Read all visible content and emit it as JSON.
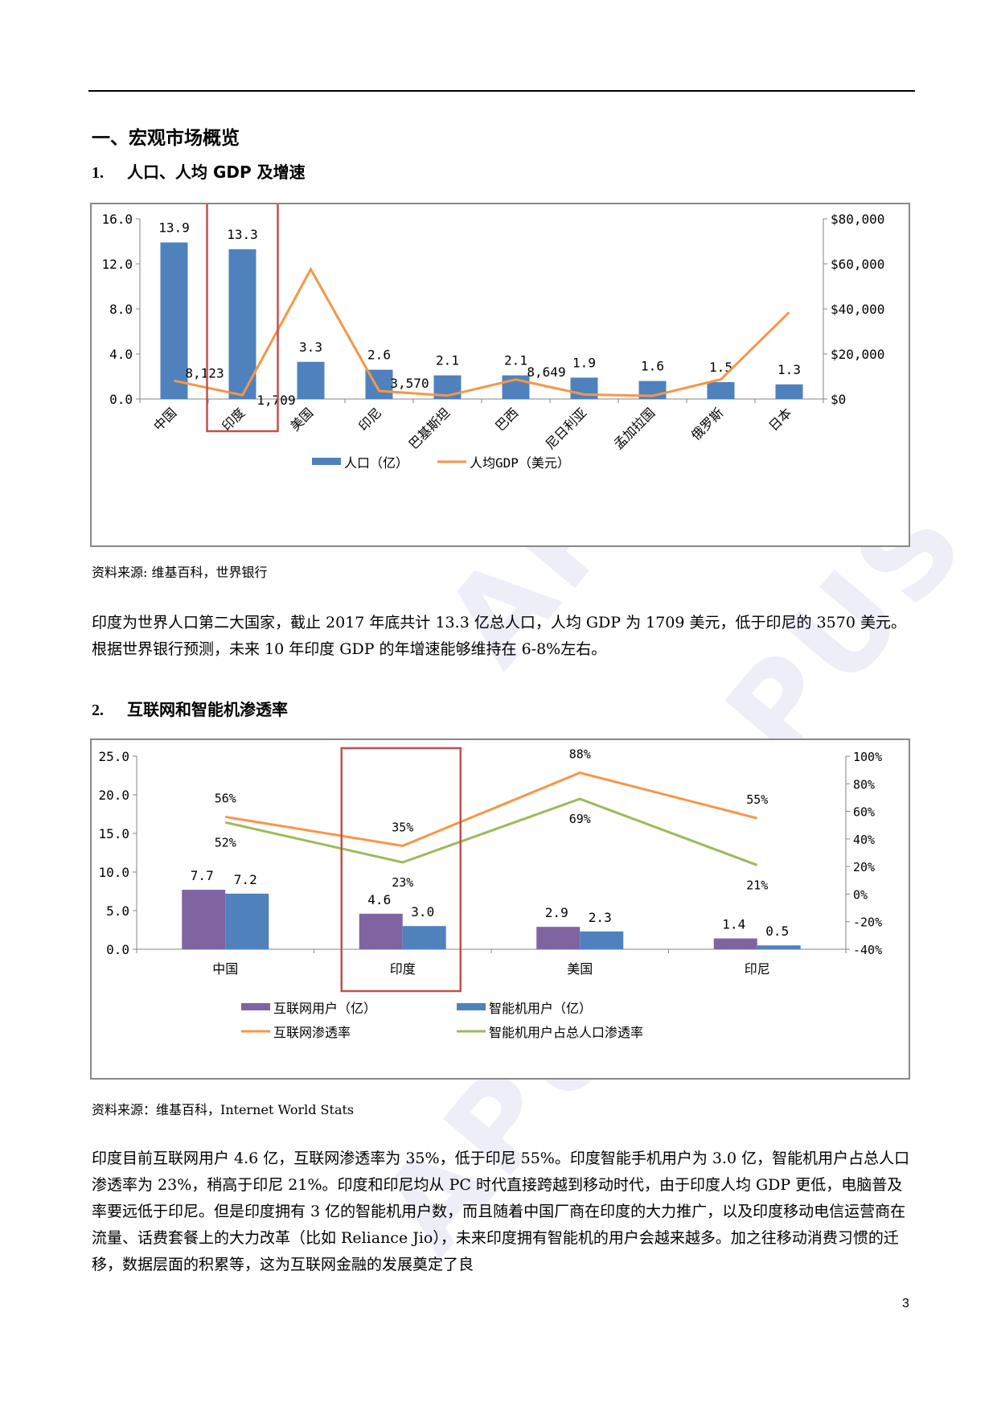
{
  "watermark_text": "APUS",
  "section_title": "一、宏观市场概览",
  "sub1": {
    "num": "1.",
    "title": "人口、人均 GDP 及增速"
  },
  "chart1_source": "资料来源: 维基百科，世界银行",
  "para1": "印度为世界人口第二大国家，截止 2017 年底共计 13.3 亿总人口，人均 GDP 为 1709 美元，低于印尼的 3570 美元。根据世界银行预测，未来 10 年印度 GDP 的年增速能够维持在 6-8%左右。",
  "sub2": {
    "num": "2.",
    "title": "互联网和智能机渗透率"
  },
  "chart2_source": "资料来源：维基百科，Internet World Stats",
  "para2": "印度目前互联网用户 4.6 亿，互联网渗透率为 35%，低于印尼 55%。印度智能手机用户为 3.0 亿，智能机用户占总人口渗透率为 23%，稍高于印尼 21%。印度和印尼均从 PC 时代直接跨越到移动时代，由于印度人均 GDP 更低，电脑普及率要远低于印尼。但是印度拥有 3 亿的智能机用户数，而且随着中国厂商在印度的大力推广，以及印度移动电信运营商在流量、话费套餐上的大力改革（比如 Reliance Jio），未来印度拥有智能机的用户会越来越多。加之往移动消费习惯的迁移，数据层面的积累等，这为互联网金融的发展奠定了良",
  "page_number": "3",
  "chart_data": [
    {
      "type": "bar",
      "categories": [
        "中国",
        "印度",
        "美国",
        "印尼",
        "巴基斯坦",
        "巴西",
        "尼日利亚",
        "孟加拉国",
        "俄罗斯",
        "日本"
      ],
      "series": [
        {
          "name": "人口（亿）",
          "kind": "bar",
          "axis": "left",
          "color": "#4f81bd",
          "values": [
            13.9,
            13.3,
            3.3,
            2.6,
            2.1,
            2.1,
            1.9,
            1.6,
            1.5,
            1.3
          ],
          "labels": [
            "13.9",
            "13.3",
            "3.3",
            "2.6",
            "2.1",
            "2.1",
            "1.9",
            "1.6",
            "1.5",
            "1.3"
          ]
        },
        {
          "name": "人均GDP（美元）",
          "kind": "line",
          "axis": "right",
          "color": "#f79646",
          "values": [
            8123,
            1709,
            57600,
            3570,
            1500,
            8649,
            2000,
            1400,
            8700,
            38500
          ],
          "point_labels": [
            {
              "i": 0,
              "text": "8,123"
            },
            {
              "i": 1,
              "text": "1,709"
            },
            {
              "i": 3,
              "text": "3,570"
            },
            {
              "i": 5,
              "text": "8,649"
            }
          ]
        }
      ],
      "yticks_left": [
        "0.0",
        "4.0",
        "8.0",
        "12.0",
        "16.0"
      ],
      "ylim_left": [
        0,
        16
      ],
      "yticks_right": [
        "$0",
        "$20,000",
        "$40,000",
        "$60,000",
        "$80,000"
      ],
      "ylim_right": [
        0,
        80000
      ],
      "highlight_category": "印度",
      "legend_position": "bottom"
    },
    {
      "type": "bar",
      "categories": [
        "中国",
        "印度",
        "美国",
        "印尼"
      ],
      "series": [
        {
          "name": "互联网用户（亿）",
          "kind": "bar",
          "axis": "left",
          "color": "#8064a2",
          "values": [
            7.7,
            4.6,
            2.9,
            1.4
          ],
          "labels": [
            "7.7",
            "4.6",
            "2.9",
            "1.4"
          ]
        },
        {
          "name": "智能机用户（亿）",
          "kind": "bar",
          "axis": "left",
          "color": "#4f81bd",
          "values": [
            7.2,
            3.0,
            2.3,
            0.5
          ],
          "labels": [
            "7.2",
            "3.0",
            "2.3",
            "0.5"
          ]
        },
        {
          "name": "互联网渗透率",
          "kind": "line",
          "axis": "right",
          "color": "#f79646",
          "values": [
            56,
            35,
            88,
            55
          ],
          "labels": [
            "56%",
            "35%",
            "88%",
            "55%"
          ]
        },
        {
          "name": "智能机用户占总人口渗透率",
          "kind": "line",
          "axis": "right",
          "color": "#9bbb59",
          "values": [
            52,
            23,
            69,
            21
          ],
          "labels": [
            "52%",
            "23%",
            "69%",
            "21%"
          ]
        }
      ],
      "yticks_left": [
        "0.0",
        "5.0",
        "10.0",
        "15.0",
        "20.0",
        "25.0"
      ],
      "ylim_left": [
        0,
        25
      ],
      "yticks_right": [
        "-40%",
        "-20%",
        "0%",
        "20%",
        "40%",
        "60%",
        "80%",
        "100%"
      ],
      "ylim_right": [
        -40,
        100
      ],
      "highlight_category": "印度",
      "legend_position": "bottom"
    }
  ]
}
